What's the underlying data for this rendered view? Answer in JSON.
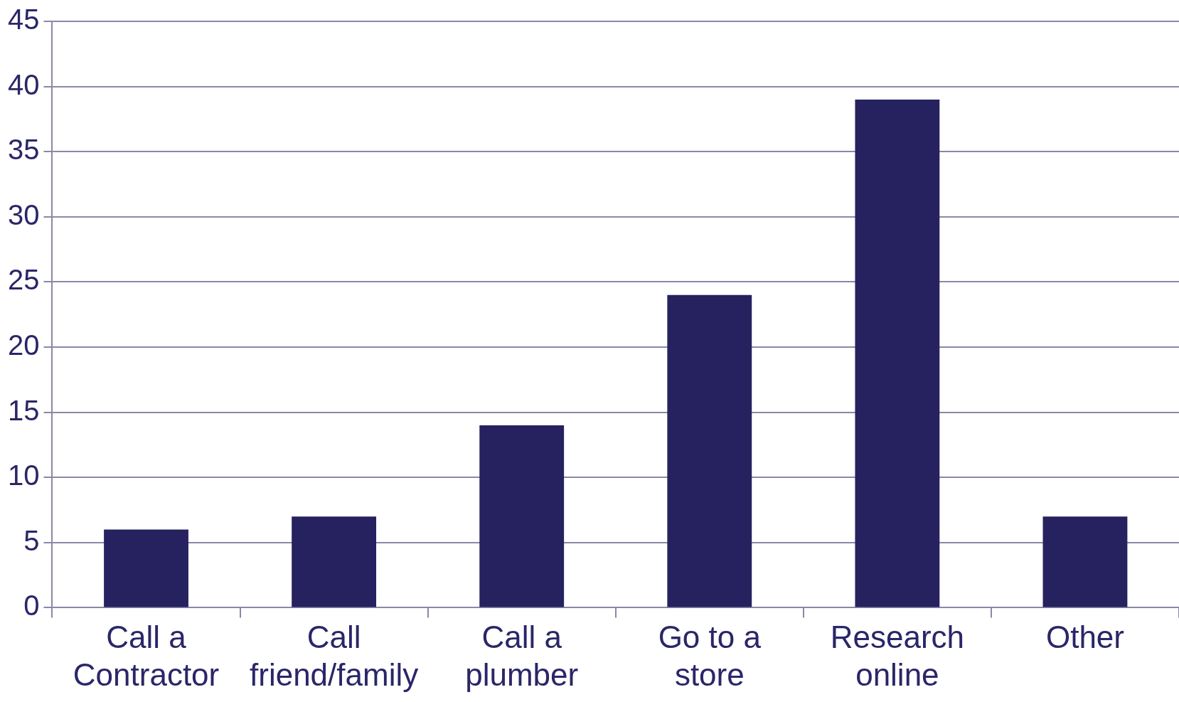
{
  "chart_data": {
    "type": "bar",
    "categories": [
      "Call a Contractor",
      "Call friend/family",
      "Call a plumber",
      "Go to a store",
      "Research online",
      "Other"
    ],
    "values": [
      6,
      7,
      14,
      24,
      39,
      7
    ],
    "color": "#26215f",
    "ylim": [
      0,
      45
    ],
    "yticks": [
      0,
      5,
      10,
      15,
      20,
      25,
      30,
      35,
      40,
      45
    ],
    "grid": "y",
    "legend": false
  }
}
